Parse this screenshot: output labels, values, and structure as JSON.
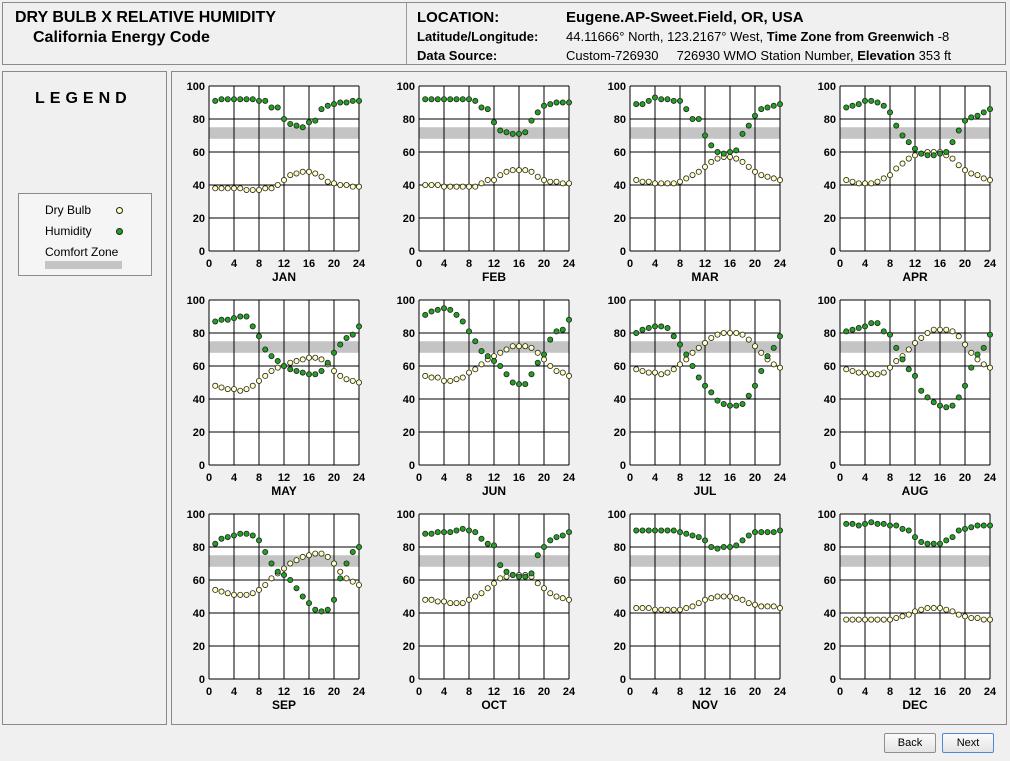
{
  "header": {
    "title": "DRY BULB  X  RELATIVE HUMIDITY",
    "subtitle": "California Energy Code",
    "location_label": "LOCATION:",
    "location_value": "Eugene.AP-Sweet.Field, OR, USA",
    "latlon_label": "Latitude/Longitude:",
    "latlon_value": "44.11666° North, 123.2167° West,",
    "timezone_label": "Time Zone from Greenwich",
    "timezone_value": "-8",
    "datasource_label": "Data Source:",
    "datasource_value": "Custom-726930",
    "wmo_value": "726930 WMO Station Number,",
    "elevation_label": "Elevation",
    "elevation_value": "353 ft"
  },
  "legend": {
    "title": "LEGEND",
    "drybulb": "Dry Bulb",
    "humidity": "Humidity",
    "comfort": "Comfort Zone"
  },
  "buttons": {
    "back": "Back",
    "next": "Next"
  },
  "colors": {
    "drybulb": "#ffffc0",
    "humidity": "#22a022",
    "comfort_zone": "#c4c4c4",
    "grid": "#000000"
  },
  "chart_data": {
    "type": "scatter",
    "x_ticks": [
      0,
      4,
      8,
      12,
      16,
      20,
      24
    ],
    "y_ticks": [
      0,
      20,
      40,
      60,
      80,
      100
    ],
    "xlim": [
      0,
      24
    ],
    "ylim": [
      0,
      100
    ],
    "comfort_zone": [
      68,
      75
    ],
    "hours": [
      1,
      2,
      3,
      4,
      5,
      6,
      7,
      8,
      9,
      10,
      11,
      12,
      13,
      14,
      15,
      16,
      17,
      18,
      19,
      20,
      21,
      22,
      23,
      24
    ],
    "months": [
      {
        "name": "JAN",
        "drybulb": [
          38,
          38,
          38,
          38,
          38,
          37,
          37,
          37,
          38,
          38,
          40,
          43,
          46,
          47,
          48,
          48,
          47,
          45,
          42,
          41,
          40,
          40,
          39,
          39
        ],
        "humidity": [
          91,
          92,
          92,
          92,
          92,
          92,
          92,
          91,
          91,
          87,
          87,
          80,
          77,
          76,
          75,
          78,
          79,
          86,
          88,
          89,
          90,
          90,
          91,
          91
        ]
      },
      {
        "name": "FEB",
        "drybulb": [
          40,
          40,
          40,
          39,
          39,
          39,
          39,
          39,
          39,
          41,
          43,
          43,
          46,
          48,
          49,
          49,
          49,
          48,
          45,
          43,
          42,
          42,
          41,
          41
        ],
        "humidity": [
          92,
          92,
          92,
          92,
          92,
          92,
          92,
          92,
          91,
          87,
          86,
          78,
          73,
          72,
          71,
          71,
          72,
          79,
          84,
          88,
          89,
          90,
          90,
          90
        ]
      },
      {
        "name": "MAR",
        "drybulb": [
          43,
          42,
          42,
          41,
          41,
          41,
          41,
          42,
          44,
          46,
          48,
          51,
          54,
          56,
          57,
          57,
          56,
          54,
          51,
          48,
          46,
          45,
          44,
          43
        ],
        "humidity": [
          89,
          89,
          91,
          93,
          92,
          92,
          91,
          91,
          86,
          80,
          80,
          70,
          64,
          60,
          59,
          60,
          61,
          71,
          76,
          82,
          86,
          87,
          88,
          89
        ]
      },
      {
        "name": "APR",
        "drybulb": [
          43,
          42,
          41,
          41,
          41,
          42,
          44,
          46,
          50,
          53,
          56,
          58,
          59,
          60,
          60,
          60,
          58,
          56,
          52,
          49,
          47,
          46,
          44,
          43
        ],
        "humidity": [
          87,
          88,
          89,
          91,
          91,
          90,
          88,
          84,
          76,
          70,
          66,
          62,
          59,
          58,
          58,
          59,
          60,
          66,
          73,
          79,
          81,
          82,
          84,
          86
        ]
      },
      {
        "name": "MAY",
        "drybulb": [
          48,
          47,
          46,
          46,
          45,
          46,
          48,
          51,
          54,
          57,
          59,
          60,
          62,
          63,
          64,
          65,
          65,
          64,
          61,
          57,
          54,
          52,
          51,
          50
        ],
        "humidity": [
          87,
          88,
          88,
          89,
          90,
          90,
          84,
          78,
          70,
          66,
          63,
          60,
          58,
          57,
          56,
          55,
          55,
          57,
          62,
          68,
          73,
          77,
          79,
          84
        ]
      },
      {
        "name": "JUN",
        "drybulb": [
          54,
          53,
          53,
          51,
          51,
          52,
          53,
          56,
          58,
          61,
          64,
          66,
          68,
          70,
          72,
          72,
          72,
          71,
          68,
          64,
          60,
          57,
          56,
          54
        ],
        "humidity": [
          91,
          93,
          94,
          95,
          94,
          91,
          87,
          81,
          75,
          69,
          66,
          63,
          60,
          55,
          50,
          49,
          49,
          55,
          62,
          67,
          76,
          81,
          82,
          88
        ]
      },
      {
        "name": "JUL",
        "drybulb": [
          58,
          57,
          56,
          56,
          55,
          56,
          58,
          61,
          64,
          68,
          71,
          74,
          77,
          79,
          80,
          80,
          80,
          79,
          76,
          72,
          68,
          64,
          61,
          59
        ],
        "humidity": [
          80,
          82,
          83,
          84,
          84,
          83,
          78,
          73,
          67,
          60,
          53,
          48,
          44,
          39,
          37,
          36,
          36,
          37,
          42,
          48,
          57,
          66,
          71,
          78
        ]
      },
      {
        "name": "AUG",
        "drybulb": [
          58,
          57,
          56,
          56,
          55,
          55,
          56,
          59,
          63,
          66,
          70,
          74,
          77,
          80,
          82,
          82,
          82,
          81,
          78,
          73,
          68,
          64,
          61,
          59
        ],
        "humidity": [
          81,
          82,
          83,
          84,
          86,
          86,
          81,
          79,
          71,
          64,
          58,
          54,
          45,
          41,
          38,
          36,
          35,
          36,
          41,
          48,
          59,
          67,
          71,
          79
        ]
      },
      {
        "name": "SEP",
        "drybulb": [
          54,
          53,
          52,
          51,
          51,
          51,
          52,
          54,
          57,
          61,
          64,
          67,
          70,
          72,
          74,
          75,
          76,
          76,
          74,
          70,
          65,
          61,
          59,
          57
        ],
        "humidity": [
          82,
          85,
          86,
          87,
          88,
          88,
          87,
          84,
          77,
          70,
          65,
          63,
          60,
          55,
          50,
          46,
          42,
          41,
          42,
          48,
          61,
          70,
          77,
          80
        ]
      },
      {
        "name": "OCT",
        "drybulb": [
          48,
          48,
          47,
          47,
          46,
          46,
          46,
          48,
          50,
          52,
          55,
          58,
          61,
          62,
          63,
          63,
          63,
          62,
          58,
          55,
          52,
          50,
          49,
          48
        ],
        "humidity": [
          88,
          88,
          89,
          89,
          89,
          90,
          91,
          90,
          89,
          85,
          82,
          81,
          69,
          65,
          63,
          62,
          62,
          64,
          75,
          80,
          84,
          86,
          87,
          89
        ]
      },
      {
        "name": "NOV",
        "drybulb": [
          43,
          43,
          43,
          42,
          42,
          42,
          42,
          42,
          43,
          44,
          46,
          48,
          49,
          50,
          50,
          50,
          49,
          48,
          46,
          45,
          44,
          44,
          44,
          43
        ],
        "humidity": [
          90,
          90,
          90,
          90,
          90,
          90,
          90,
          89,
          88,
          87,
          86,
          84,
          80,
          79,
          80,
          80,
          81,
          84,
          87,
          89,
          89,
          89,
          89,
          90
        ]
      },
      {
        "name": "DEC",
        "drybulb": [
          36,
          36,
          36,
          36,
          36,
          36,
          36,
          36,
          37,
          38,
          39,
          41,
          42,
          43,
          43,
          43,
          42,
          41,
          39,
          38,
          37,
          37,
          36,
          36
        ],
        "humidity": [
          94,
          94,
          93,
          94,
          95,
          94,
          94,
          93,
          93,
          91,
          90,
          86,
          83,
          82,
          82,
          82,
          84,
          86,
          90,
          91,
          92,
          93,
          93,
          93
        ]
      }
    ]
  }
}
